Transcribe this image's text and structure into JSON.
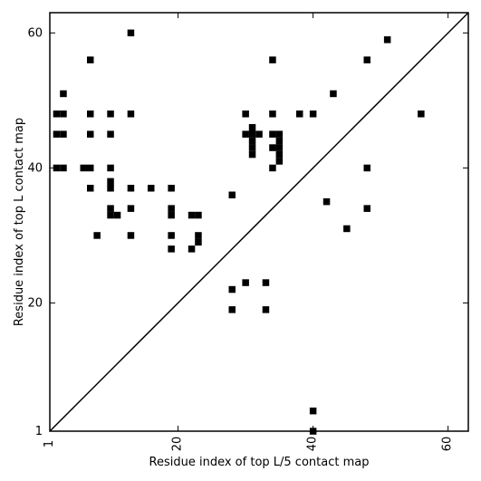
{
  "chart_data": {
    "type": "scatter",
    "marker": "square",
    "xlabel": "Residue index of top L/5 contact map",
    "ylabel": "Residue index of top L contact map",
    "xlim": [
      1,
      63
    ],
    "ylim": [
      1,
      63
    ],
    "xticks": [
      1,
      20,
      40,
      60
    ],
    "yticks": [
      1,
      20,
      40,
      60
    ],
    "diagonal": true,
    "grid": false,
    "colors": {
      "marker": "#000000",
      "axes": "#000000",
      "background": "#ffffff"
    },
    "series": [
      {
        "points": [
          [
            2,
            48
          ],
          [
            3,
            48
          ],
          [
            2,
            45
          ],
          [
            3,
            45
          ],
          [
            3,
            51
          ],
          [
            2,
            40
          ],
          [
            3,
            40
          ],
          [
            6,
            40
          ],
          [
            7,
            40
          ],
          [
            7,
            56
          ],
          [
            7,
            48
          ],
          [
            7,
            45
          ],
          [
            7,
            37
          ],
          [
            8,
            30
          ],
          [
            10,
            48
          ],
          [
            10,
            45
          ],
          [
            10,
            40
          ],
          [
            10,
            38
          ],
          [
            10,
            37
          ],
          [
            10,
            34
          ],
          [
            10,
            33
          ],
          [
            11,
            33
          ],
          [
            13,
            60
          ],
          [
            13,
            48
          ],
          [
            13,
            37
          ],
          [
            13,
            34
          ],
          [
            13,
            30
          ],
          [
            16,
            37
          ],
          [
            19,
            37
          ],
          [
            19,
            34
          ],
          [
            19,
            33
          ],
          [
            19,
            30
          ],
          [
            19,
            28
          ],
          [
            22,
            33
          ],
          [
            23,
            33
          ],
          [
            23,
            30
          ],
          [
            23,
            29
          ],
          [
            22,
            28
          ],
          [
            28,
            36
          ],
          [
            28,
            22
          ],
          [
            28,
            19
          ],
          [
            30,
            48
          ],
          [
            30,
            45
          ],
          [
            31,
            46
          ],
          [
            31,
            45
          ],
          [
            31,
            44
          ],
          [
            31,
            43
          ],
          [
            31,
            42
          ],
          [
            32,
            45
          ],
          [
            30,
            23
          ],
          [
            33,
            23
          ],
          [
            33,
            19
          ],
          [
            34,
            56
          ],
          [
            34,
            48
          ],
          [
            34,
            45
          ],
          [
            34,
            43
          ],
          [
            34,
            40
          ],
          [
            35,
            45
          ],
          [
            35,
            44
          ],
          [
            35,
            43
          ],
          [
            35,
            42
          ],
          [
            35,
            41
          ],
          [
            38,
            48
          ],
          [
            40,
            48
          ],
          [
            42,
            35
          ],
          [
            43,
            51
          ],
          [
            45,
            31
          ],
          [
            48,
            56
          ],
          [
            48,
            40
          ],
          [
            48,
            34
          ],
          [
            51,
            59
          ],
          [
            56,
            48
          ],
          [
            40,
            4
          ],
          [
            40,
            1
          ]
        ]
      }
    ]
  }
}
